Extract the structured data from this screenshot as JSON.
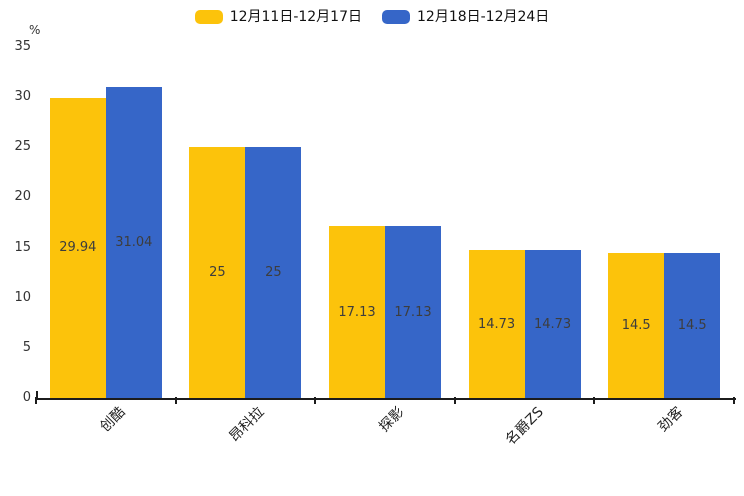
{
  "chart_data": {
    "type": "bar",
    "title": "",
    "unit_label": "%",
    "categories": [
      "创酷",
      "昂科拉",
      "探影",
      "名爵ZS",
      "劲客"
    ],
    "series": [
      {
        "name": "12月11日-12月17日",
        "color": "#FCC30B",
        "values": [
          29.94,
          25,
          17.13,
          14.73,
          14.5
        ],
        "labels": [
          "29.94",
          "25",
          "17.13",
          "14.73",
          "14.5"
        ]
      },
      {
        "name": "12月18日-12月24日",
        "color": "#3666C8",
        "values": [
          31.04,
          25,
          17.13,
          14.73,
          14.5
        ],
        "labels": [
          "31.04",
          "25",
          "17.13",
          "14.73",
          "14.5"
        ]
      }
    ],
    "ylim": [
      0,
      35
    ],
    "yticks": [
      0,
      5,
      10,
      15,
      20,
      25,
      30,
      35
    ],
    "xlabel": "",
    "ylabel": "%",
    "legend_position": "top",
    "grid": false,
    "value_labels_inside_bars": true
  }
}
